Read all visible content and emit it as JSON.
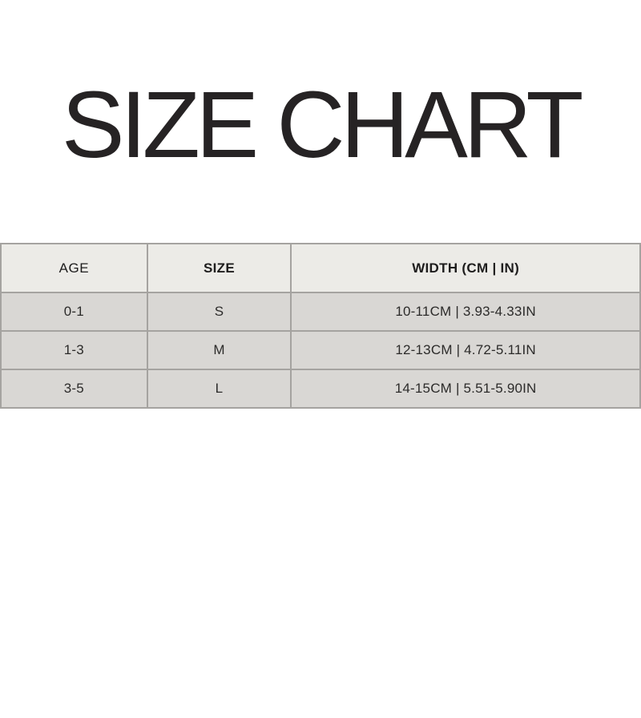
{
  "title": "SIZE CHART",
  "colors": {
    "page_background": "#ffffff",
    "title_text": "#262324",
    "header_row_background": "#ECEBE7",
    "data_row_background": "#D9D7D4",
    "table_border": "#A5A3A0",
    "table_text": "#2C2B2A"
  },
  "table": {
    "columns": [
      {
        "key": "age",
        "label": "AGE"
      },
      {
        "key": "size",
        "label": "SIZE"
      },
      {
        "key": "width",
        "label": "WIDTH (CM | IN)"
      }
    ],
    "rows": [
      {
        "age": "0-1",
        "size": "S",
        "width": "10-11CM | 3.93-4.33IN"
      },
      {
        "age": "1-3",
        "size": "M",
        "width": "12-13CM | 4.72-5.11IN"
      },
      {
        "age": "3-5",
        "size": "L",
        "width": "14-15CM | 5.51-5.90IN"
      }
    ]
  }
}
